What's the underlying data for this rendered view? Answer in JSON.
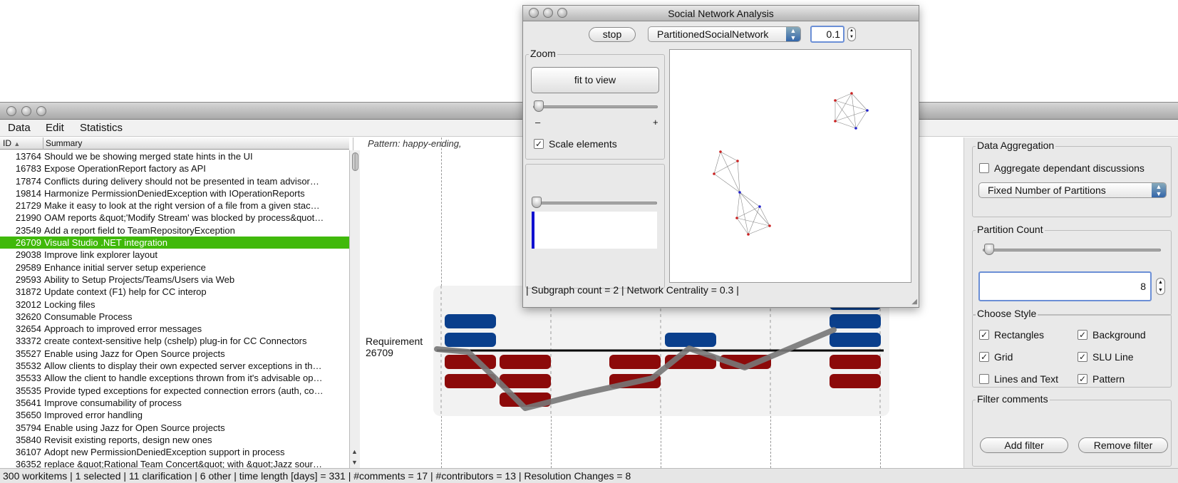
{
  "main_window": {
    "menu": [
      "Data",
      "Edit",
      "Statistics"
    ]
  },
  "list": {
    "col_id": "ID",
    "col_summary": "Summary",
    "rows": [
      {
        "id": "13764",
        "summary": "Should we be showing merged state hints in the UI"
      },
      {
        "id": "16783",
        "summary": "Expose OperationReport factory as API"
      },
      {
        "id": "17874",
        "summary": "Conflicts during delivery should not be presented in team advisor…"
      },
      {
        "id": "19814",
        "summary": "Harmonize PermissionDeniedException with IOperationReports"
      },
      {
        "id": "21729",
        "summary": "Make it easy to look at the right version of a file from a given stac…"
      },
      {
        "id": "21990",
        "summary": "OAM reports &quot;'Modify Stream' was blocked by process&quot…"
      },
      {
        "id": "23549",
        "summary": "Add a report field to TeamRepositoryException"
      },
      {
        "id": "26709",
        "summary": "Visual Studio .NET integration",
        "selected": true
      },
      {
        "id": "29038",
        "summary": "Improve link explorer layout"
      },
      {
        "id": "29589",
        "summary": "Enhance initial server setup experience"
      },
      {
        "id": "29593",
        "summary": "Ability to Setup Projects/Teams/Users via Web"
      },
      {
        "id": "31872",
        "summary": "Update context (F1) help for CC interop"
      },
      {
        "id": "32012",
        "summary": "Locking files"
      },
      {
        "id": "32620",
        "summary": "Consumable Process"
      },
      {
        "id": "32654",
        "summary": "Approach to improved error messages"
      },
      {
        "id": "33372",
        "summary": "create context-sensitive help (cshelp) plug-in for CC Connectors"
      },
      {
        "id": "35527",
        "summary": "Enable using Jazz for Open Source projects"
      },
      {
        "id": "35532",
        "summary": "Allow clients to display their own expected server exceptions in th…"
      },
      {
        "id": "35533",
        "summary": "Allow the client to handle exceptions thrown from it's advisable op…"
      },
      {
        "id": "35535",
        "summary": "Provide typed exceptions for expected connection errors (auth, co…"
      },
      {
        "id": "35641",
        "summary": "Improve consumability of process"
      },
      {
        "id": "35650",
        "summary": "Improved error handling"
      },
      {
        "id": "35794",
        "summary": "Enable using Jazz for Open Source projects"
      },
      {
        "id": "35840",
        "summary": "Revisit existing reports, design new ones"
      },
      {
        "id": "36107",
        "summary": "Adopt new PermissionDeniedException support in process"
      },
      {
        "id": "36352",
        "summary": "replace &quot;Rational Team Concert&quot; with &quot;Jazz sour…"
      }
    ]
  },
  "center": {
    "pattern_label": "Pattern: happy-ending,",
    "requirement_label": "Requirement",
    "requirement_id": "26709",
    "colors": {
      "blue": "#0a3f8c",
      "red": "#8c0a0a",
      "line": "#777777",
      "bg": "#f2f2f2"
    }
  },
  "right": {
    "data_aggregation": {
      "title": "Data Aggregation",
      "aggregate_label": "Aggregate dependant discussions",
      "aggregate_checked": false,
      "partition_mode": "Fixed Number of Partitions"
    },
    "partition_count": {
      "title": "Partition Count",
      "value": "8",
      "slider_level": 0
    },
    "choose_style": {
      "title": "Choose Style",
      "rectangles": {
        "label": "Rectangles",
        "checked": true
      },
      "background": {
        "label": "Background",
        "checked": true
      },
      "grid": {
        "label": "Grid",
        "checked": true
      },
      "slu_line": {
        "label": "SLU Line",
        "checked": true
      },
      "lines_text": {
        "label": "Lines and Text",
        "checked": false
      },
      "pattern": {
        "label": "Pattern",
        "checked": true
      }
    },
    "filter": {
      "title": "Filter comments",
      "add_label": "Add filter",
      "remove_label": "Remove filter"
    }
  },
  "status_bar": "300 workitems | 1 selected | 11 clarification | 6 other | time length [days] = 331 | #comments = 17 | #contributors = 13 | Resolution Changes = 8",
  "sna": {
    "title": "Social Network Analysis",
    "stop_label": "stop",
    "layout_option": "PartitionedSocialNetwork",
    "value": "0.1",
    "zoom_title": "Zoom",
    "fit_label": "fit to view",
    "minus": "–",
    "plus": "+",
    "scale_label": "Scale elements",
    "scale_checked": true,
    "status": "| Subgraph count = 2 | Network Centrality = 0.3 |"
  }
}
